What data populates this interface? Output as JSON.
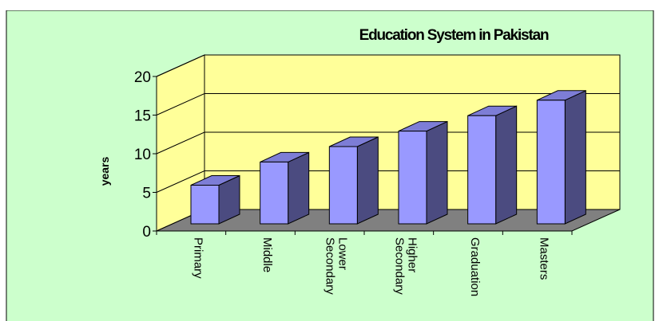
{
  "chart_data": {
    "type": "bar",
    "title": "Education System in Pakistan",
    "ylabel": "years",
    "xlabel": "",
    "categories": [
      [
        "Primary"
      ],
      [
        "Middle"
      ],
      [
        "Lower",
        "Secondary"
      ],
      [
        "Higher",
        "Secondary"
      ],
      [
        "Graduation"
      ],
      [
        "Masters"
      ]
    ],
    "values": [
      5,
      8,
      10,
      12,
      14,
      16
    ],
    "ylim": [
      0,
      20
    ],
    "yticks": [
      0,
      5,
      10,
      15,
      20
    ],
    "grid": true,
    "legend": "none",
    "colors": {
      "plot_wall": "#ffff99",
      "floor": "#808080",
      "bar_front": "#9999ff",
      "bar_side": "#4b4b80",
      "bar_top": "#7d7dd6",
      "chart_bg": "#ccffcc"
    }
  }
}
